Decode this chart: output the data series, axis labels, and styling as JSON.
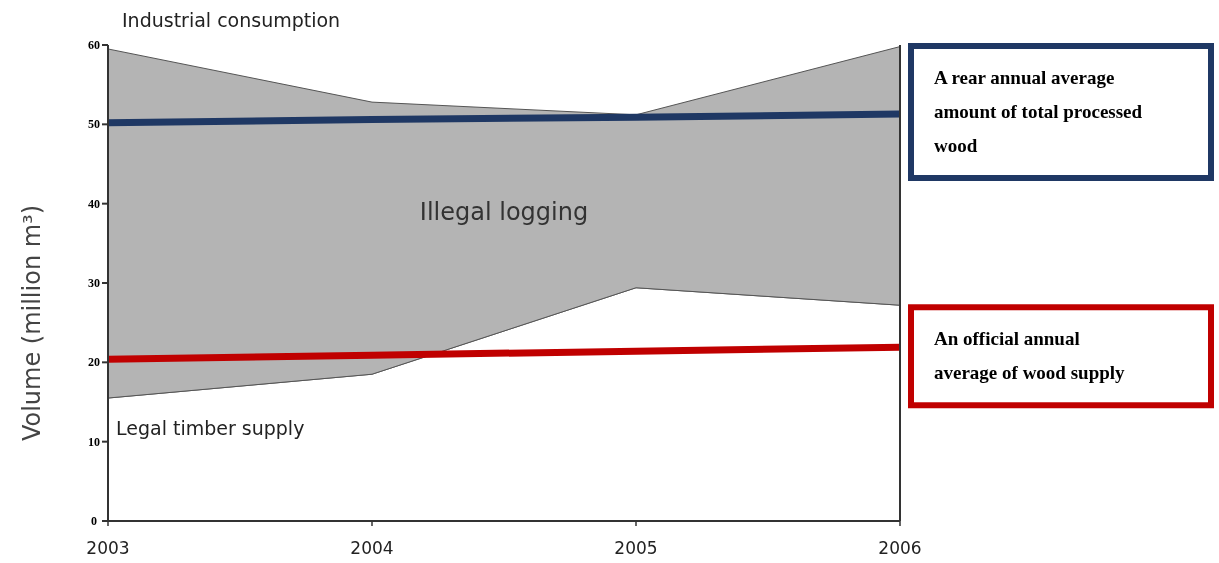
{
  "chart_data": {
    "type": "area",
    "stacked": true,
    "ylabel": "Volume (million m³)",
    "x": [
      2003,
      2004,
      2005,
      2006
    ],
    "xlim": [
      2003,
      2006
    ],
    "xticks": [
      2003,
      2004,
      2005,
      2006
    ],
    "ylim": [
      0,
      60
    ],
    "yticks": [
      0,
      10,
      20,
      30,
      40,
      50,
      60
    ],
    "legend": "right",
    "annotations": [
      "Industrial consumption"
    ],
    "series": [
      {
        "name": "Legal timber supply",
        "color": "#ffffff",
        "values": [
          15.5,
          18.5,
          29.4,
          27.2
        ]
      },
      {
        "name": "Illegal logging",
        "color": "#b4b4b4",
        "values": [
          44.0,
          34.3,
          21.8,
          32.6
        ]
      },
      {
        "name": "A rear annual average amount of total processed wood",
        "type": "line",
        "color": "#1f3864",
        "values": [
          50.2,
          50.6,
          50.9,
          51.3
        ]
      },
      {
        "name": "An official annual average of wood supply",
        "type": "line",
        "color": "#c00000",
        "values": [
          20.4,
          20.9,
          21.4,
          21.9
        ]
      }
    ]
  }
}
